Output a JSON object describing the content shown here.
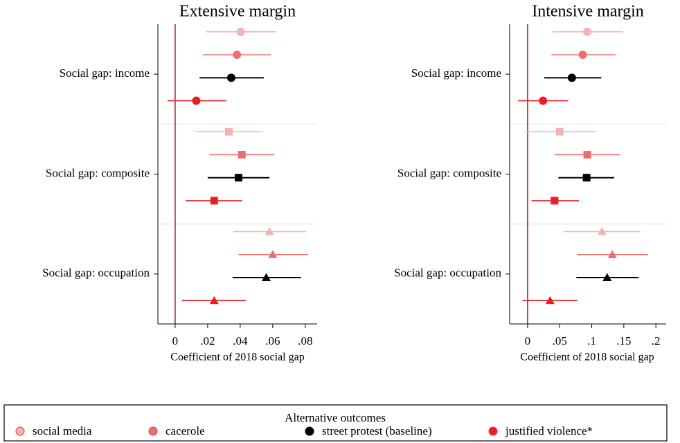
{
  "chart_data": [
    {
      "type": "coefficient",
      "title": "Extensive margin",
      "x_label": "Coefficient of 2018 social gap",
      "legend_title": "Alternative outcomes",
      "categories": [
        "Social gap: income",
        "Social gap: composite",
        "Social gap: occupation"
      ],
      "markers": [
        "circle",
        "square",
        "triangle"
      ],
      "xlim": [
        -0.0106,
        0.0873
      ],
      "xticks": [
        0,
        {
          "value": 0.02,
          "label": ".02"
        },
        {
          "value": 0.04,
          "label": ".04"
        },
        {
          "value": 0.06,
          "label": ".06"
        },
        {
          "value": 0.08,
          "label": ".08"
        }
      ],
      "series": [
        {
          "name": "social media",
          "color": "#f4b3b3",
          "values": [
            0.0404,
            0.033,
            0.058
          ],
          "ci_low": [
            0.019,
            0.0128,
            0.0357
          ],
          "ci_high": [
            0.062,
            0.054,
            0.0804
          ]
        },
        {
          "name": "cacerole",
          "color": "#ec6f6f",
          "values": [
            0.038,
            0.041,
            0.06
          ],
          "ci_low": [
            0.017,
            0.021,
            0.039
          ],
          "ci_high": [
            0.059,
            0.061,
            0.0817
          ]
        },
        {
          "name": "street protest (baseline)",
          "color": "#000000",
          "values": [
            0.0345,
            0.039,
            0.056
          ],
          "ci_low": [
            0.015,
            0.02,
            0.0353
          ],
          "ci_high": [
            0.0545,
            0.058,
            0.0774
          ]
        },
        {
          "name": "justified violence*",
          "color": "#ee1c25",
          "values": [
            0.013,
            0.024,
            0.024
          ],
          "ci_low": [
            -0.0047,
            0.0064,
            0.0043
          ],
          "ci_high": [
            0.0315,
            0.0413,
            0.0434
          ]
        }
      ]
    },
    {
      "type": "coefficient",
      "title": "Intensive margin",
      "x_label": "Coefficient of 2018 social gap",
      "categories": [
        "Social gap: income",
        "Social gap: composite",
        "Social gap: occupation"
      ],
      "markers": [
        "circle",
        "square",
        "triangle"
      ],
      "xlim": [
        -0.028,
        0.216
      ],
      "xticks": [
        0,
        {
          "value": 0.05,
          "label": ".05"
        },
        {
          "value": 0.1,
          "label": ".1"
        },
        {
          "value": 0.15,
          "label": ".15"
        },
        {
          "value": 0.2,
          "label": ".2"
        }
      ],
      "series": [
        {
          "color": "#f4b3b3",
          "values": [
            0.093,
            0.05,
            0.116
          ],
          "ci_low": [
            0.038,
            -0.005,
            0.057
          ],
          "ci_high": [
            0.149,
            0.106,
            0.176
          ]
        },
        {
          "color": "#ec6f6f",
          "values": [
            0.086,
            0.093,
            0.132
          ],
          "ci_low": [
            0.037,
            0.042,
            0.077
          ],
          "ci_high": [
            0.137,
            0.144,
            0.188
          ]
        },
        {
          "color": "#000000",
          "values": [
            0.069,
            0.092,
            0.124
          ],
          "ci_low": [
            0.026,
            0.048,
            0.076
          ],
          "ci_high": [
            0.115,
            0.135,
            0.173
          ]
        },
        {
          "color": "#ee1c25",
          "values": [
            0.024,
            0.042,
            0.035
          ],
          "ci_low": [
            -0.015,
            0.006,
            -0.008
          ],
          "ci_high": [
            0.063,
            0.08,
            0.078
          ]
        }
      ]
    }
  ]
}
